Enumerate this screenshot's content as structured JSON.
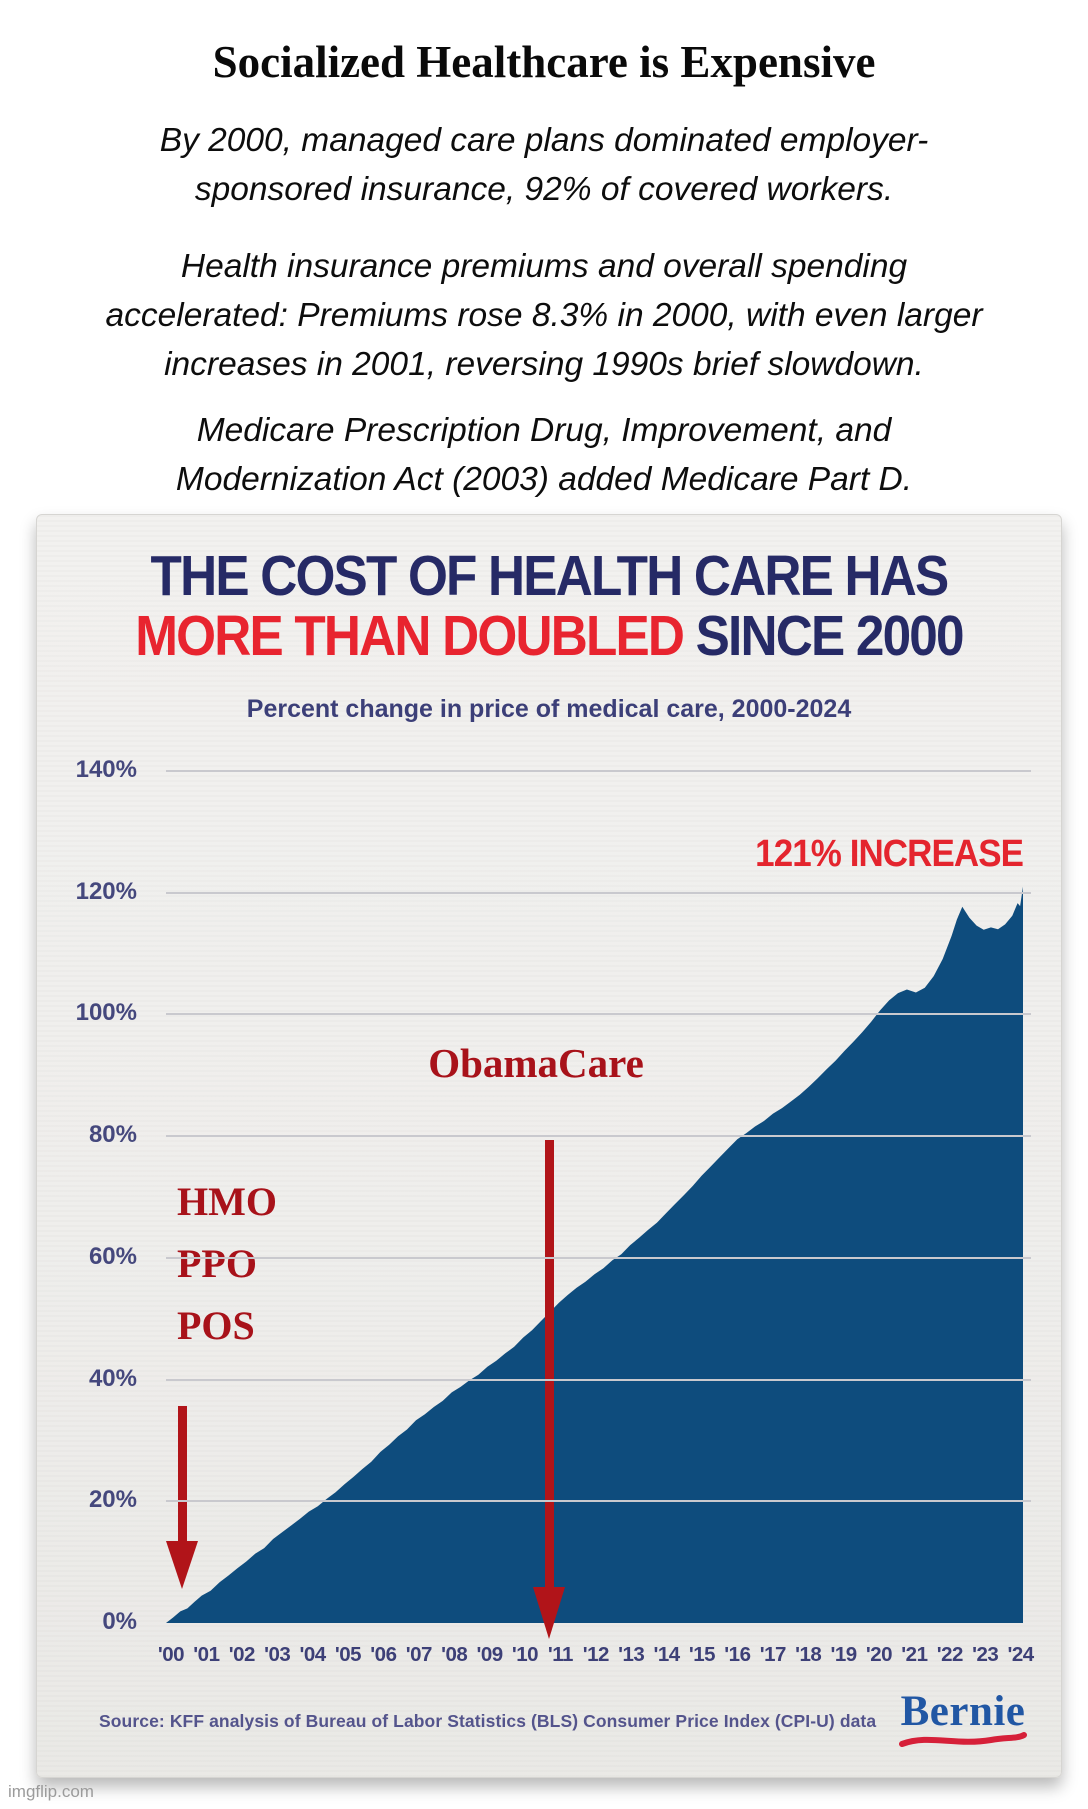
{
  "page": {
    "watermark": "imgflip.com"
  },
  "header": {
    "title": "Socialized Healthcare is Expensive",
    "paragraphs": [
      [
        "By 2000, managed care plans dominated employer-",
        "sponsored insurance, 92% of covered workers."
      ],
      [
        "Health insurance premiums and overall spending",
        "accelerated: Premiums rose 8.3% in 2000, with even larger",
        "increases in 2001, reversing 1990s brief slowdown."
      ],
      [
        "Medicare Prescription Drug, Improvement, and",
        "Modernization Act (2003) added Medicare Part D."
      ]
    ]
  },
  "chart": {
    "title_line1": "THE COST OF HEALTH CARE HAS",
    "title_line2_red": "MORE THAN DOUBLED",
    "title_line2_navy": " SINCE 2000",
    "source": "Source:  KFF analysis of Bureau of Labor Statistics (BLS) Consumer Price Index (CPI-U) data",
    "logo_text": "Bernie"
  },
  "chart_data": {
    "type": "area",
    "title": "THE COST OF HEALTH CARE HAS MORE THAN DOUBLED SINCE 2000",
    "subtitle": "Percent change in price of medical care, 2000-2024",
    "xlim": [
      2000,
      2024
    ],
    "ylim": [
      0,
      140
    ],
    "grid": true,
    "legend": false,
    "yticks": [
      {
        "label": "140%",
        "value": 140
      },
      {
        "label": "120%",
        "value": 120
      },
      {
        "label": "100%",
        "value": 100
      },
      {
        "label": "80%",
        "value": 80
      },
      {
        "label": "60%",
        "value": 60
      },
      {
        "label": "40%",
        "value": 40
      },
      {
        "label": "20%",
        "value": 20
      },
      {
        "label": "0%",
        "value": 0
      }
    ],
    "xticks": [
      "'00",
      "'01",
      "'02",
      "'03",
      "'04",
      "'05",
      "'06",
      "'07",
      "'08",
      "'09",
      "'10",
      "'11",
      "'12",
      "'13",
      "'14",
      "'15",
      "'16",
      "'17",
      "'18",
      "'19",
      "'20",
      "'21",
      "'22",
      "'23",
      "'24"
    ],
    "annotations": {
      "increase": {
        "text": "121% INCREASE",
        "color": "#e4252e"
      },
      "obamacare": {
        "text": "ObamaCare",
        "target_year": 2010.5,
        "color": "#a8121a"
      },
      "managed_care": {
        "lines": [
          "HMO",
          "PPO",
          "POS"
        ],
        "target_year": 2000.3,
        "color": "#a8121a"
      }
    },
    "series": [
      {
        "name": "Percent change in price of medical care since 2000",
        "color": "#0e4c7d",
        "final_value_pct": 121,
        "points": [
          [
            2000,
            0
          ],
          [
            2000.2,
            0.9
          ],
          [
            2000.4,
            1.9
          ],
          [
            2000.6,
            2.4
          ],
          [
            2000.8,
            3.5
          ],
          [
            2001,
            4.5
          ],
          [
            2001.25,
            5.3
          ],
          [
            2001.5,
            6.7
          ],
          [
            2001.75,
            7.8
          ],
          [
            2002,
            9
          ],
          [
            2002.25,
            10.1
          ],
          [
            2002.5,
            11.4
          ],
          [
            2002.75,
            12.3
          ],
          [
            2003,
            13.8
          ],
          [
            2003.25,
            14.9
          ],
          [
            2003.5,
            16
          ],
          [
            2003.75,
            17.1
          ],
          [
            2004,
            18.3
          ],
          [
            2004.25,
            19.2
          ],
          [
            2004.5,
            20.4
          ],
          [
            2004.75,
            21.5
          ],
          [
            2005,
            22.8
          ],
          [
            2005.25,
            24
          ],
          [
            2005.5,
            25.3
          ],
          [
            2005.75,
            26.5
          ],
          [
            2006,
            28.1
          ],
          [
            2006.25,
            29.3
          ],
          [
            2006.5,
            30.7
          ],
          [
            2006.75,
            31.8
          ],
          [
            2007,
            33.3
          ],
          [
            2007.25,
            34.3
          ],
          [
            2007.5,
            35.5
          ],
          [
            2007.75,
            36.5
          ],
          [
            2008,
            37.9
          ],
          [
            2008.25,
            38.8
          ],
          [
            2008.5,
            39.9
          ],
          [
            2008.75,
            40.8
          ],
          [
            2009,
            42.1
          ],
          [
            2009.25,
            43.1
          ],
          [
            2009.5,
            44.3
          ],
          [
            2009.75,
            45.4
          ],
          [
            2010,
            46.9
          ],
          [
            2010.25,
            48.1
          ],
          [
            2010.5,
            49.6
          ],
          [
            2010.75,
            51.1
          ],
          [
            2011,
            52.6
          ],
          [
            2011.25,
            53.9
          ],
          [
            2011.5,
            55.1
          ],
          [
            2011.75,
            56.1
          ],
          [
            2012,
            57.3
          ],
          [
            2012.25,
            58.3
          ],
          [
            2012.5,
            59.6
          ],
          [
            2012.75,
            60.6
          ],
          [
            2013,
            62.1
          ],
          [
            2013.25,
            63.3
          ],
          [
            2013.5,
            64.6
          ],
          [
            2013.75,
            65.8
          ],
          [
            2014,
            67.3
          ],
          [
            2014.25,
            68.8
          ],
          [
            2014.5,
            70.3
          ],
          [
            2014.75,
            71.8
          ],
          [
            2015,
            73.5
          ],
          [
            2015.25,
            75
          ],
          [
            2015.5,
            76.5
          ],
          [
            2015.75,
            78
          ],
          [
            2016,
            79.5
          ],
          [
            2016.25,
            80.5
          ],
          [
            2016.5,
            81.6
          ],
          [
            2016.75,
            82.5
          ],
          [
            2017,
            83.7
          ],
          [
            2017.25,
            84.6
          ],
          [
            2017.5,
            85.7
          ],
          [
            2017.75,
            86.8
          ],
          [
            2018,
            88.1
          ],
          [
            2018.25,
            89.5
          ],
          [
            2018.5,
            91
          ],
          [
            2018.75,
            92.4
          ],
          [
            2019,
            94
          ],
          [
            2019.25,
            95.5
          ],
          [
            2019.5,
            97.1
          ],
          [
            2019.75,
            98.8
          ],
          [
            2020,
            100.7
          ],
          [
            2020.25,
            102.3
          ],
          [
            2020.5,
            103.5
          ],
          [
            2020.75,
            104.1
          ],
          [
            2021,
            103.6
          ],
          [
            2021.25,
            104.4
          ],
          [
            2021.5,
            106.3
          ],
          [
            2021.75,
            109.1
          ],
          [
            2022,
            112.9
          ],
          [
            2022.15,
            115.6
          ],
          [
            2022.3,
            117.7
          ],
          [
            2022.5,
            115.9
          ],
          [
            2022.7,
            114.6
          ],
          [
            2022.9,
            113.9
          ],
          [
            2023.1,
            114.3
          ],
          [
            2023.3,
            114
          ],
          [
            2023.5,
            114.8
          ],
          [
            2023.7,
            116.2
          ],
          [
            2023.85,
            118.3
          ],
          [
            2023.92,
            117.8
          ],
          [
            2024,
            121
          ]
        ]
      }
    ]
  }
}
